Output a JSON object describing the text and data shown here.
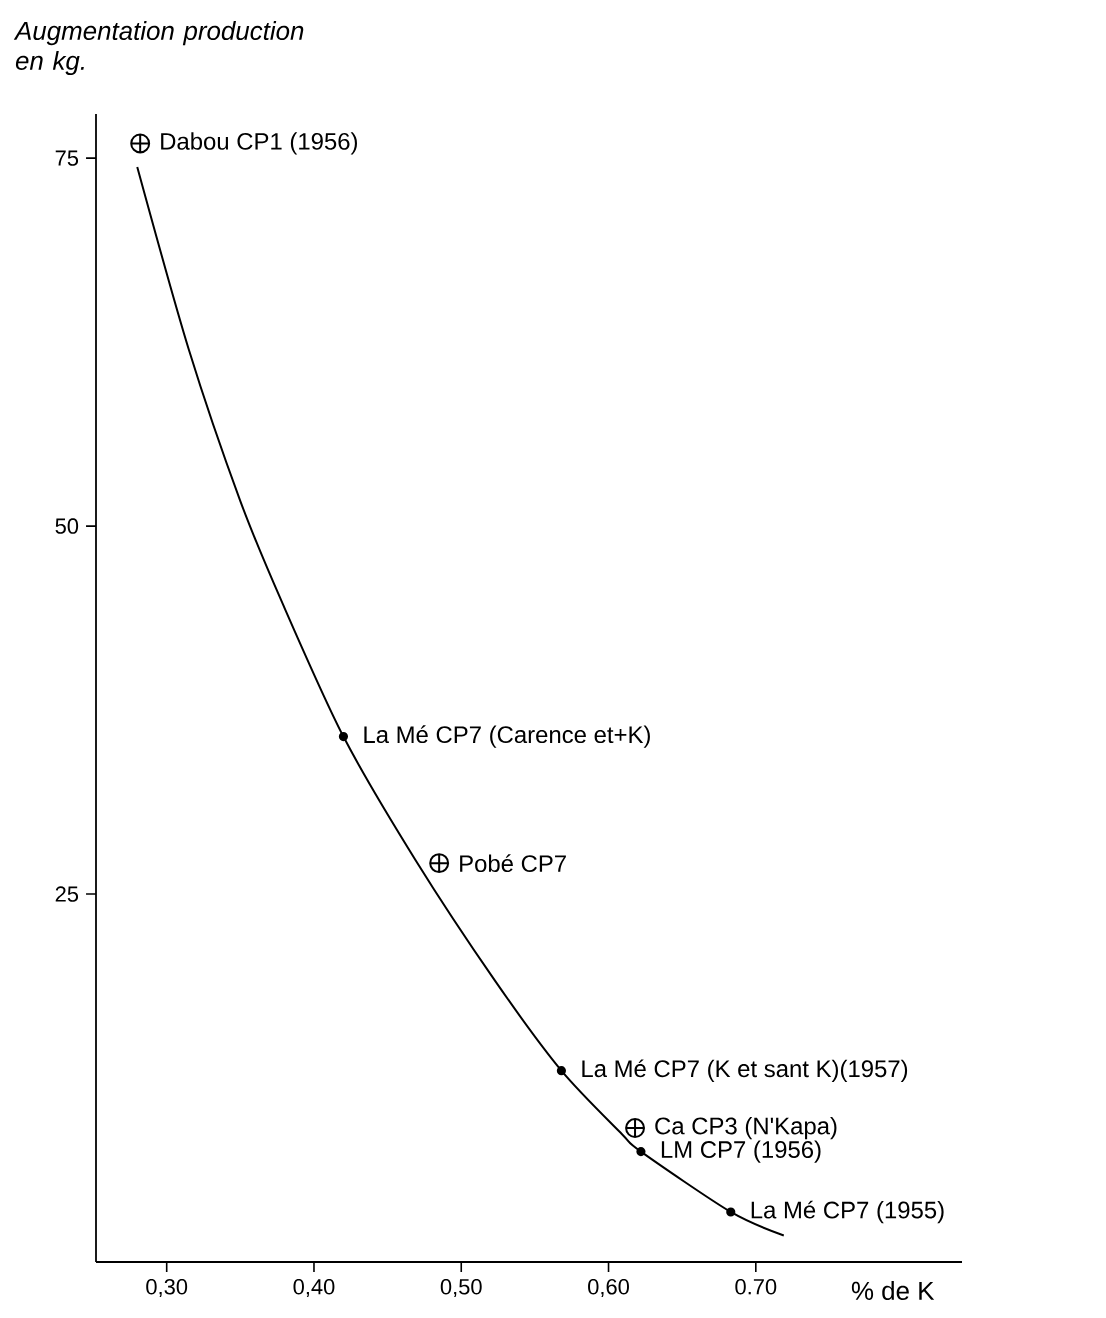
{
  "chart_data": {
    "type": "scatter",
    "ylabel": "Augmentation production en kg.",
    "xlabel": "% de K",
    "xlim": [
      0.252,
      0.84
    ],
    "ylim": [
      0,
      78
    ],
    "xticks": [
      {
        "value": 0.3,
        "label": "0,30"
      },
      {
        "value": 0.4,
        "label": "0,40"
      },
      {
        "value": 0.5,
        "label": "0,50"
      },
      {
        "value": 0.6,
        "label": "0,60"
      },
      {
        "value": 0.7,
        "label": "0.70"
      }
    ],
    "yticks": [
      25,
      50,
      75
    ],
    "series": [
      {
        "marker": "cross",
        "color": "#000000",
        "x": [
          0.282,
          0.485,
          0.618
        ],
        "values": [
          76,
          27.1,
          9.1
        ]
      },
      {
        "marker": "circle",
        "color": "#000000",
        "x": [
          0.42,
          0.568,
          0.622,
          0.683
        ],
        "values": [
          35.7,
          13.0,
          7.5,
          3.4
        ]
      },
      {
        "type": "line",
        "marker": "none",
        "line_style": "solid",
        "color": "#000000",
        "x": [
          0.28,
          0.315,
          0.35,
          0.378,
          0.42,
          0.469,
          0.523,
          0.568,
          0.609,
          0.622,
          0.683,
          0.719
        ],
        "values": [
          74.4,
          62,
          51.7,
          44.9,
          35.7,
          27.3,
          19.1,
          13.0,
          8.7,
          7.5,
          3.4,
          1.8
        ]
      }
    ],
    "annotations": [
      {
        "text": "Dabou CP1 (1956)",
        "x": 0.282,
        "y": 76
      },
      {
        "text": "La Mé CP7 (Carence et+K)",
        "x": 0.42,
        "y": 35.7
      },
      {
        "text": "Pobé CP7",
        "x": 0.485,
        "y": 27.1
      },
      {
        "text": "La Mé CP7 (K et sant K)(1957)",
        "x": 0.568,
        "y": 13.0
      },
      {
        "text": "Ca CP3 (N'Kapa)",
        "x": 0.618,
        "y": 9.1
      },
      {
        "text": "LM CP7 (1956)",
        "x": 0.622,
        "y": 7.5
      },
      {
        "text": "La Mé CP7 (1955)",
        "x": 0.683,
        "y": 3.4
      }
    ]
  }
}
